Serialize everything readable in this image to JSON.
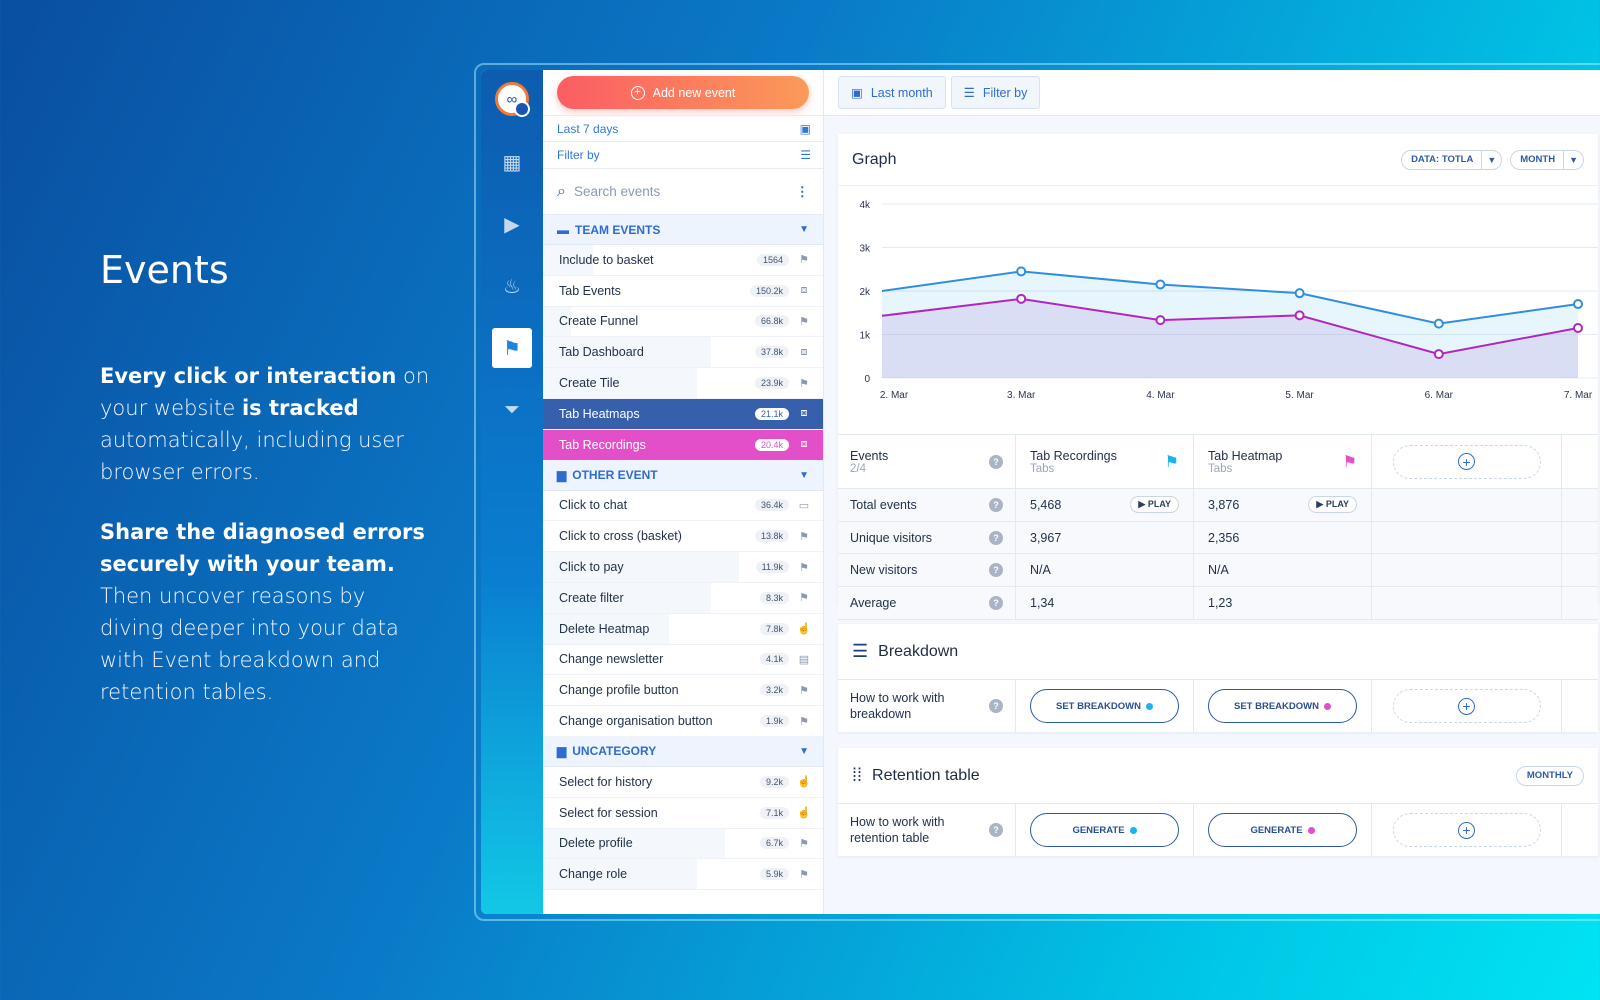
{
  "hero": {
    "title": "Events",
    "p1_b1": "Every click or interaction",
    "p1_t1": " on your website ",
    "p1_b2": "is tracked",
    "p1_t2": " automatically, including user browser errors.",
    "p2_b1": "Share the diagnosed errors securely with your team.",
    "p2_t1": " Then uncover reasons by diving deeper into your data with Event breakdown and retention tables."
  },
  "panel": {
    "add_label": "Add new event",
    "date_filter": "Last 7 days",
    "filter_by": "Filter by",
    "search_placeholder": "Search events",
    "categories": [
      {
        "name": "TEAM EVENTS"
      },
      {
        "name": "OTHER EVENT"
      },
      {
        "name": "UNCATEGORY"
      }
    ],
    "team_events": [
      {
        "name": "Include to basket",
        "count": "1564",
        "fill": 0.18
      },
      {
        "name": "Tab Events",
        "count": "150.2k",
        "fill": 0.0
      },
      {
        "name": "Create Funnel",
        "count": "66.8k",
        "fill": 0.1
      },
      {
        "name": "Tab Dashboard",
        "count": "37.8k",
        "fill": 0.6
      },
      {
        "name": "Create Tile",
        "count": "23.9k",
        "fill": 0.55
      },
      {
        "name": "Tab Heatmaps",
        "count": "21.1k",
        "fill": 1.0
      },
      {
        "name": "Tab Recordings",
        "count": "20.4k",
        "fill": 1.0
      }
    ],
    "other_events": [
      {
        "name": "Click to chat",
        "count": "36.4k",
        "fill": 0.0
      },
      {
        "name": "Click to cross (basket)",
        "count": "13.8k",
        "fill": 0.0
      },
      {
        "name": "Click to pay",
        "count": "11.9k",
        "fill": 0.7
      },
      {
        "name": "Create filter",
        "count": "8.3k",
        "fill": 0.6
      },
      {
        "name": "Delete Heatmap",
        "count": "7.8k",
        "fill": 0.45
      },
      {
        "name": "Change newsletter",
        "count": "4.1k",
        "fill": 0.0
      },
      {
        "name": "Change profile button",
        "count": "3.2k",
        "fill": 0.0
      },
      {
        "name": "Change organisation button",
        "count": "1.9k",
        "fill": 0.0
      }
    ],
    "uncategory": [
      {
        "name": "Select for history",
        "count": "9.2k",
        "fill": 0.0
      },
      {
        "name": "Select for session",
        "count": "7.1k",
        "fill": 0.0
      },
      {
        "name": "Delete profile",
        "count": "6.7k",
        "fill": 0.65
      },
      {
        "name": "Change role",
        "count": "5.9k",
        "fill": 0.55
      }
    ]
  },
  "topbar": {
    "last_month": "Last month",
    "filter_by": "Filter by"
  },
  "graph": {
    "title": "Graph",
    "data_pill": "DATA: TOTLA",
    "month_pill": "MONTH"
  },
  "chart_data": {
    "type": "area",
    "title": "Graph",
    "categories": [
      "2. Mar",
      "3. Mar",
      "4. Mar",
      "5. Mar",
      "6. Mar",
      "7. Mar"
    ],
    "y_ticks": [
      "0",
      "1k",
      "2k",
      "3k",
      "4k"
    ],
    "ylim": [
      0,
      4000
    ],
    "series": [
      {
        "name": "Tab Recordings",
        "color": "#2f8ee0",
        "values": [
          2000,
          2450,
          2150,
          1950,
          1250,
          1700
        ]
      },
      {
        "name": "Tab Heatmap",
        "color": "#b226c0",
        "values": [
          1430,
          1820,
          1330,
          1440,
          550,
          1150
        ]
      }
    ]
  },
  "table": {
    "events_label": "Events",
    "events_sub": "2/4",
    "col1": {
      "name": "Tab Recordings",
      "sub": "Tabs",
      "flag_color": "#1ab2f0"
    },
    "col2": {
      "name": "Tab Heatmap",
      "sub": "Tabs",
      "flag_color": "#e34fc9"
    },
    "play": "PLAY",
    "rows": [
      {
        "label": "Total events",
        "v1": "5,468",
        "v2": "3,876"
      },
      {
        "label": "Unique visitors",
        "v1": "3,967",
        "v2": "2,356"
      },
      {
        "label": "New visitors",
        "v1": "N/A",
        "v2": "N/A"
      },
      {
        "label": "Average",
        "v1": "1,34",
        "v2": "1,23"
      }
    ]
  },
  "breakdown": {
    "title": "Breakdown",
    "desc": "How to work with breakdown",
    "btn": "SET BREAKDOWN"
  },
  "retention": {
    "title": "Retention table",
    "monthly": "MONTHLY",
    "desc": "How to work with retention table",
    "btn": "GENERATE"
  },
  "colors": {
    "dot_blue": "#1ab2f0",
    "dot_pink": "#e34fc9"
  }
}
